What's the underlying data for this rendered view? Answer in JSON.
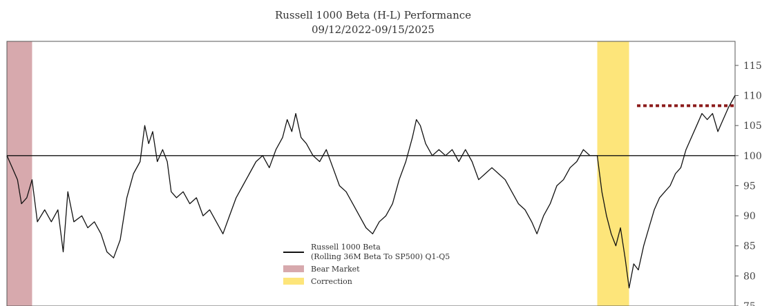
{
  "chart_data": {
    "type": "line",
    "title": "Russell 1000 Beta (H-L) Performance",
    "subtitle": "09/12/2022-09/15/2025",
    "x_range": [
      "2022-09-12",
      "2025-09-15"
    ],
    "ylim": [
      75,
      119
    ],
    "yticks": [
      75,
      80,
      85,
      90,
      95,
      100,
      105,
      110,
      115
    ],
    "reference_line": 100,
    "threshold_line": {
      "value": 108.3,
      "from": "2025-04-20",
      "to": "2025-09-15",
      "color": "#8b1a1a"
    },
    "shaded_regions": [
      {
        "name": "Bear Market",
        "from": "2022-09-12",
        "to": "2022-10-20",
        "color": "#d7a9ad"
      },
      {
        "name": "Correction",
        "from": "2025-02-19",
        "to": "2025-04-08",
        "color": "#fde57a"
      }
    ],
    "series": [
      {
        "name": "Russell 1000 Beta",
        "name_line2": "(Rolling 36M Beta To SP500) Q1-Q5",
        "color": "#111111",
        "points": [
          [
            "2022-09-12",
            100
          ],
          [
            "2022-09-20",
            98
          ],
          [
            "2022-09-28",
            96
          ],
          [
            "2022-10-04",
            92
          ],
          [
            "2022-10-12",
            93
          ],
          [
            "2022-10-20",
            96
          ],
          [
            "2022-10-28",
            89
          ],
          [
            "2022-11-08",
            91
          ],
          [
            "2022-11-18",
            89
          ],
          [
            "2022-11-28",
            91
          ],
          [
            "2022-12-06",
            84
          ],
          [
            "2022-12-13",
            94
          ],
          [
            "2022-12-22",
            89
          ],
          [
            "2023-01-03",
            90
          ],
          [
            "2023-01-12",
            88
          ],
          [
            "2023-01-22",
            89
          ],
          [
            "2023-02-01",
            87
          ],
          [
            "2023-02-10",
            84
          ],
          [
            "2023-02-20",
            83
          ],
          [
            "2023-03-02",
            86
          ],
          [
            "2023-03-12",
            93
          ],
          [
            "2023-03-22",
            97
          ],
          [
            "2023-04-01",
            99
          ],
          [
            "2023-04-08",
            105
          ],
          [
            "2023-04-14",
            102
          ],
          [
            "2023-04-20",
            104
          ],
          [
            "2023-04-27",
            99
          ],
          [
            "2023-05-05",
            101
          ],
          [
            "2023-05-12",
            99
          ],
          [
            "2023-05-18",
            94
          ],
          [
            "2023-05-26",
            93
          ],
          [
            "2023-06-05",
            94
          ],
          [
            "2023-06-15",
            92
          ],
          [
            "2023-06-25",
            93
          ],
          [
            "2023-07-05",
            90
          ],
          [
            "2023-07-15",
            91
          ],
          [
            "2023-07-25",
            89
          ],
          [
            "2023-08-04",
            87
          ],
          [
            "2023-08-14",
            90
          ],
          [
            "2023-08-24",
            93
          ],
          [
            "2023-09-03",
            95
          ],
          [
            "2023-09-13",
            97
          ],
          [
            "2023-09-23",
            99
          ],
          [
            "2023-10-03",
            100
          ],
          [
            "2023-10-13",
            98
          ],
          [
            "2023-10-23",
            101
          ],
          [
            "2023-11-02",
            103
          ],
          [
            "2023-11-09",
            106
          ],
          [
            "2023-11-16",
            104
          ],
          [
            "2023-11-22",
            107
          ],
          [
            "2023-11-30",
            103
          ],
          [
            "2023-12-08",
            102
          ],
          [
            "2023-12-18",
            100
          ],
          [
            "2023-12-28",
            99
          ],
          [
            "2024-01-07",
            101
          ],
          [
            "2024-01-17",
            98
          ],
          [
            "2024-01-27",
            95
          ],
          [
            "2024-02-06",
            94
          ],
          [
            "2024-02-16",
            92
          ],
          [
            "2024-02-26",
            90
          ],
          [
            "2024-03-07",
            88
          ],
          [
            "2024-03-17",
            87
          ],
          [
            "2024-03-27",
            89
          ],
          [
            "2024-04-06",
            90
          ],
          [
            "2024-04-16",
            92
          ],
          [
            "2024-04-26",
            96
          ],
          [
            "2024-05-06",
            99
          ],
          [
            "2024-05-16",
            103
          ],
          [
            "2024-05-22",
            106
          ],
          [
            "2024-05-28",
            105
          ],
          [
            "2024-06-05",
            102
          ],
          [
            "2024-06-15",
            100
          ],
          [
            "2024-06-25",
            101
          ],
          [
            "2024-07-05",
            100
          ],
          [
            "2024-07-15",
            101
          ],
          [
            "2024-07-25",
            99
          ],
          [
            "2024-08-04",
            101
          ],
          [
            "2024-08-14",
            99
          ],
          [
            "2024-08-24",
            96
          ],
          [
            "2024-09-03",
            97
          ],
          [
            "2024-09-13",
            98
          ],
          [
            "2024-09-23",
            97
          ],
          [
            "2024-10-03",
            96
          ],
          [
            "2024-10-13",
            94
          ],
          [
            "2024-10-23",
            92
          ],
          [
            "2024-11-02",
            91
          ],
          [
            "2024-11-12",
            89
          ],
          [
            "2024-11-20",
            87
          ],
          [
            "2024-11-30",
            90
          ],
          [
            "2024-12-10",
            92
          ],
          [
            "2024-12-20",
            95
          ],
          [
            "2024-12-30",
            96
          ],
          [
            "2025-01-09",
            98
          ],
          [
            "2025-01-19",
            99
          ],
          [
            "2025-01-29",
            101
          ],
          [
            "2025-02-08",
            100
          ],
          [
            "2025-02-19",
            100
          ],
          [
            "2025-02-26",
            94
          ],
          [
            "2025-03-05",
            90
          ],
          [
            "2025-03-12",
            87
          ],
          [
            "2025-03-19",
            85
          ],
          [
            "2025-03-26",
            88
          ],
          [
            "2025-04-02",
            83
          ],
          [
            "2025-04-08",
            78
          ],
          [
            "2025-04-15",
            82
          ],
          [
            "2025-04-22",
            81
          ],
          [
            "2025-04-30",
            85
          ],
          [
            "2025-05-08",
            88
          ],
          [
            "2025-05-16",
            91
          ],
          [
            "2025-05-24",
            93
          ],
          [
            "2025-06-01",
            94
          ],
          [
            "2025-06-09",
            95
          ],
          [
            "2025-06-17",
            97
          ],
          [
            "2025-06-25",
            98
          ],
          [
            "2025-07-03",
            101
          ],
          [
            "2025-07-11",
            103
          ],
          [
            "2025-07-19",
            105
          ],
          [
            "2025-07-27",
            107
          ],
          [
            "2025-08-04",
            106
          ],
          [
            "2025-08-12",
            107
          ],
          [
            "2025-08-20",
            104
          ],
          [
            "2025-08-28",
            106
          ],
          [
            "2025-09-05",
            108
          ],
          [
            "2025-09-15",
            110
          ]
        ]
      }
    ],
    "legend": {
      "placement": "bottom-center",
      "items": [
        {
          "kind": "line",
          "label": "Russell 1000 Beta",
          "label_line2": "(Rolling 36M Beta To SP500) Q1-Q5",
          "color": "#111111"
        },
        {
          "kind": "box",
          "label": "Bear Market",
          "color": "#d7a9ad"
        },
        {
          "kind": "box",
          "label": "Correction",
          "color": "#fde57a"
        }
      ]
    }
  }
}
